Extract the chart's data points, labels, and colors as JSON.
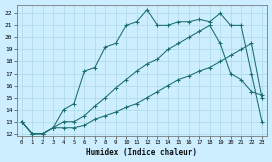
{
  "xlabel": "Humidex (Indice chaleur)",
  "bg_color": "#cceeff",
  "line_color": "#1a6e6a",
  "grid_color": "#b0dde8",
  "xlim": [
    -0.5,
    23.5
  ],
  "ylim": [
    11.8,
    22.7
  ],
  "yticks": [
    12,
    13,
    14,
    15,
    16,
    17,
    18,
    19,
    20,
    21,
    22
  ],
  "xticks": [
    0,
    1,
    2,
    3,
    4,
    5,
    6,
    7,
    8,
    9,
    10,
    11,
    12,
    13,
    14,
    15,
    16,
    17,
    18,
    19,
    20,
    21,
    22,
    23
  ],
  "s1_x": [
    0,
    1,
    2,
    3,
    4,
    5,
    6,
    7,
    8,
    9,
    10,
    11,
    12,
    13,
    14,
    15,
    16,
    17,
    18,
    19,
    20,
    21,
    22,
    23
  ],
  "s1_y": [
    13,
    12,
    12,
    12.5,
    12.5,
    12.5,
    12.7,
    13.2,
    13.5,
    13.8,
    14.2,
    14.5,
    15.0,
    15.5,
    16.0,
    16.5,
    16.8,
    17.2,
    17.5,
    18.0,
    18.5,
    19.0,
    19.5,
    15.0
  ],
  "s2_x": [
    0,
    1,
    2,
    3,
    4,
    5,
    6,
    7,
    8,
    9,
    10,
    11,
    12,
    13,
    14,
    15,
    16,
    17,
    18,
    19,
    20,
    21,
    22,
    23
  ],
  "s2_y": [
    13,
    12,
    12,
    12.5,
    13,
    13,
    13.5,
    14.3,
    15.0,
    15.8,
    16.5,
    17.2,
    17.8,
    18.2,
    19.0,
    19.5,
    20.0,
    20.5,
    21.0,
    19.5,
    17.0,
    16.5,
    15.5,
    15.2
  ],
  "s3_x": [
    0,
    1,
    2,
    3,
    4,
    5,
    6,
    7,
    8,
    9,
    10,
    11,
    12,
    13,
    14,
    15,
    16,
    17,
    18,
    19,
    20,
    21,
    22,
    23
  ],
  "s3_y": [
    13,
    12,
    12,
    12.5,
    14,
    14.5,
    17.2,
    17.5,
    19.2,
    19.5,
    21.0,
    21.3,
    22.3,
    21.0,
    21.0,
    21.3,
    21.3,
    21.5,
    21.3,
    22.0,
    21.0,
    21.0,
    17.0,
    13.0
  ]
}
